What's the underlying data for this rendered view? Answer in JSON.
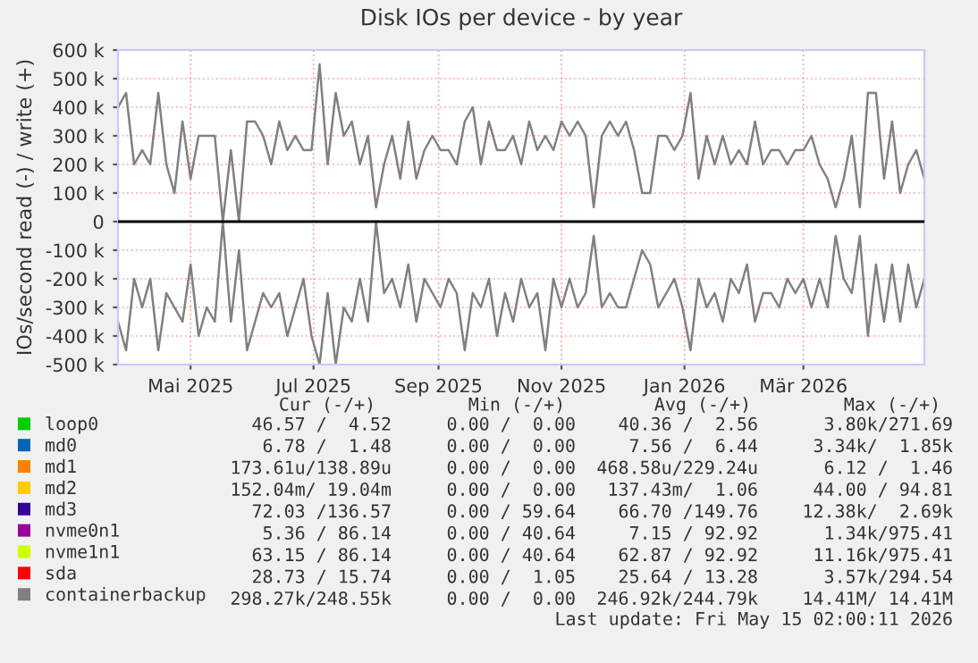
{
  "chart_data": {
    "type": "line",
    "title": "Disk IOs per device - by year",
    "ylabel": "IOs/second read (-) / write (+)",
    "x": [
      "2025-03-26",
      "2025-03-30",
      "2025-04-03",
      "2025-04-07",
      "2025-04-11",
      "2025-04-15",
      "2025-04-19",
      "2025-04-23",
      "2025-04-27",
      "2025-05-01",
      "2025-05-05",
      "2025-05-09",
      "2025-05-13",
      "2025-05-17",
      "2025-05-21",
      "2025-05-25",
      "2025-05-29",
      "2025-06-02",
      "2025-06-06",
      "2025-06-10",
      "2025-06-14",
      "2025-06-18",
      "2025-06-22",
      "2025-06-26",
      "2025-06-30",
      "2025-07-04",
      "2025-07-08",
      "2025-07-12",
      "2025-07-16",
      "2025-07-20",
      "2025-07-24",
      "2025-07-28",
      "2025-08-01",
      "2025-08-05",
      "2025-08-09",
      "2025-08-13",
      "2025-08-17",
      "2025-08-21",
      "2025-08-25",
      "2025-08-29",
      "2025-09-02",
      "2025-09-06",
      "2025-09-10",
      "2025-09-14",
      "2025-09-18",
      "2025-09-22",
      "2025-09-26",
      "2025-09-30",
      "2025-10-04",
      "2025-10-08",
      "2025-10-12",
      "2025-10-16",
      "2025-10-20",
      "2025-10-24",
      "2025-10-28",
      "2025-11-01",
      "2025-11-05",
      "2025-11-09",
      "2025-11-13",
      "2025-11-17",
      "2025-11-21",
      "2025-11-25",
      "2025-11-29",
      "2025-12-03",
      "2025-12-07",
      "2025-12-11",
      "2025-12-15",
      "2025-12-19",
      "2025-12-23",
      "2025-12-27",
      "2025-12-31",
      "2026-01-04",
      "2026-01-08",
      "2026-01-12",
      "2026-01-16",
      "2026-01-20",
      "2026-01-24",
      "2026-01-28",
      "2026-02-01",
      "2026-02-05",
      "2026-02-09",
      "2026-02-13",
      "2026-02-17",
      "2026-02-21",
      "2026-02-25",
      "2026-03-01",
      "2026-03-05",
      "2026-03-09",
      "2026-03-13",
      "2026-03-17",
      "2026-03-21",
      "2026-03-25",
      "2026-03-29",
      "2026-04-02",
      "2026-04-06",
      "2026-04-10",
      "2026-04-14",
      "2026-04-18",
      "2026-04-22",
      "2026-04-26",
      "2026-04-30"
    ],
    "series": [
      {
        "name": "loop0",
        "color": "#00cc00",
        "values": [
          null,
          null,
          null,
          null,
          null,
          null,
          null,
          null,
          null,
          null,
          null,
          null,
          null,
          null,
          null,
          null,
          null,
          null,
          null,
          null,
          null,
          null,
          null,
          null,
          null,
          null,
          null,
          null,
          null,
          null,
          null,
          null,
          null,
          null,
          null,
          null,
          null,
          null,
          null,
          null,
          null,
          null,
          null,
          null,
          null,
          null,
          null,
          null,
          null,
          null,
          null,
          null,
          null,
          null,
          null,
          null,
          null,
          null,
          null,
          null,
          null,
          null,
          null,
          null,
          null,
          null,
          null,
          null,
          null,
          null,
          null,
          null,
          null,
          null,
          null,
          null,
          null,
          null,
          null,
          null,
          null,
          null,
          null,
          null,
          null,
          null,
          null,
          null,
          null,
          null,
          null,
          null,
          null,
          null,
          null,
          null,
          null,
          null,
          null,
          null,
          null
        ]
      },
      {
        "name": "md0",
        "color": "#0066b3",
        "values": [
          null,
          null,
          null,
          null,
          null,
          null,
          null,
          null,
          null,
          null,
          null,
          null,
          null,
          null,
          null,
          null,
          null,
          null,
          null,
          null,
          null,
          null,
          null,
          null,
          null,
          null,
          null,
          null,
          null,
          null,
          null,
          null,
          null,
          null,
          null,
          null,
          null,
          null,
          null,
          null,
          null,
          null,
          null,
          null,
          null,
          null,
          null,
          null,
          null,
          null,
          null,
          null,
          null,
          null,
          null,
          null,
          null,
          null,
          null,
          null,
          null,
          null,
          null,
          null,
          null,
          null,
          null,
          null,
          null,
          null,
          null,
          null,
          null,
          null,
          null,
          null,
          null,
          null,
          null,
          null,
          null,
          null,
          null,
          null,
          null,
          null,
          null,
          null,
          null,
          null,
          null,
          null,
          null,
          null,
          null,
          null,
          null,
          null,
          null,
          null,
          null
        ]
      },
      {
        "name": "md1",
        "color": "#ff8000",
        "values": [
          null,
          null,
          null,
          null,
          null,
          null,
          null,
          null,
          null,
          null,
          null,
          null,
          null,
          null,
          null,
          null,
          null,
          null,
          null,
          null,
          null,
          null,
          null,
          null,
          null,
          null,
          null,
          null,
          null,
          null,
          null,
          null,
          null,
          null,
          null,
          null,
          null,
          null,
          null,
          null,
          null,
          null,
          null,
          null,
          null,
          null,
          null,
          null,
          null,
          null,
          null,
          null,
          null,
          null,
          null,
          null,
          null,
          null,
          null,
          null,
          null,
          null,
          null,
          null,
          null,
          null,
          null,
          null,
          null,
          null,
          null,
          null,
          null,
          null,
          null,
          null,
          null,
          null,
          null,
          null,
          null,
          null,
          null,
          null,
          null,
          null,
          null,
          null,
          null,
          null,
          null,
          null,
          null,
          null,
          null,
          null,
          null,
          null,
          null,
          null,
          null
        ]
      },
      {
        "name": "md2",
        "color": "#ffcc00",
        "values": [
          null,
          null,
          null,
          null,
          null,
          null,
          null,
          null,
          null,
          null,
          null,
          null,
          null,
          null,
          null,
          null,
          null,
          null,
          null,
          null,
          null,
          null,
          null,
          null,
          null,
          null,
          null,
          null,
          null,
          null,
          null,
          null,
          null,
          null,
          null,
          null,
          null,
          null,
          null,
          null,
          null,
          null,
          null,
          null,
          null,
          null,
          null,
          null,
          null,
          null,
          null,
          null,
          null,
          null,
          null,
          null,
          null,
          null,
          null,
          null,
          null,
          null,
          null,
          null,
          null,
          null,
          null,
          null,
          null,
          null,
          null,
          null,
          null,
          null,
          null,
          null,
          null,
          null,
          null,
          null,
          null,
          null,
          null,
          null,
          null,
          null,
          null,
          null,
          null,
          null,
          null,
          null,
          null,
          null,
          null,
          null,
          null,
          null,
          null,
          null,
          null
        ]
      },
      {
        "name": "md3",
        "color": "#330099",
        "values": [
          null,
          null,
          null,
          null,
          null,
          null,
          null,
          null,
          null,
          null,
          null,
          null,
          null,
          null,
          null,
          null,
          null,
          null,
          null,
          null,
          null,
          null,
          null,
          null,
          null,
          null,
          null,
          null,
          null,
          null,
          null,
          null,
          null,
          null,
          null,
          null,
          null,
          null,
          null,
          null,
          null,
          null,
          null,
          null,
          null,
          null,
          null,
          null,
          null,
          null,
          null,
          null,
          null,
          null,
          null,
          null,
          null,
          null,
          null,
          null,
          null,
          null,
          null,
          null,
          null,
          null,
          null,
          null,
          null,
          null,
          null,
          null,
          null,
          null,
          null,
          null,
          null,
          null,
          null,
          null,
          null,
          null,
          null,
          null,
          null,
          null,
          null,
          null,
          null,
          null,
          null,
          null,
          null,
          null,
          null,
          null,
          null,
          null,
          null,
          null,
          null
        ]
      },
      {
        "name": "nvme0n1",
        "color": "#990099",
        "values": [
          null,
          null,
          null,
          null,
          null,
          null,
          null,
          null,
          null,
          null,
          null,
          null,
          null,
          null,
          null,
          null,
          null,
          null,
          null,
          null,
          null,
          null,
          null,
          null,
          null,
          null,
          null,
          null,
          null,
          null,
          null,
          null,
          null,
          null,
          null,
          null,
          null,
          null,
          null,
          null,
          null,
          null,
          null,
          null,
          null,
          null,
          null,
          null,
          null,
          null,
          null,
          null,
          null,
          null,
          null,
          null,
          null,
          null,
          null,
          null,
          null,
          null,
          null,
          null,
          null,
          null,
          null,
          null,
          null,
          null,
          null,
          null,
          null,
          null,
          null,
          null,
          null,
          null,
          null,
          null,
          null,
          null,
          null,
          null,
          null,
          null,
          null,
          null,
          null,
          null,
          null,
          null,
          null,
          null,
          null,
          null,
          null,
          null,
          null,
          null,
          null
        ]
      },
      {
        "name": "nvme1n1",
        "color": "#ccff00",
        "values": [
          null,
          null,
          null,
          null,
          null,
          null,
          null,
          null,
          null,
          null,
          null,
          null,
          null,
          null,
          null,
          null,
          null,
          null,
          null,
          null,
          null,
          null,
          null,
          null,
          null,
          null,
          null,
          null,
          null,
          null,
          null,
          null,
          null,
          null,
          null,
          null,
          null,
          null,
          null,
          null,
          null,
          null,
          null,
          null,
          null,
          null,
          null,
          null,
          null,
          null,
          null,
          null,
          null,
          null,
          null,
          null,
          null,
          null,
          null,
          null,
          null,
          null,
          null,
          null,
          null,
          null,
          null,
          null,
          null,
          null,
          null,
          null,
          null,
          null,
          null,
          null,
          null,
          null,
          null,
          null,
          null,
          null,
          null,
          null,
          null,
          null,
          null,
          null,
          null,
          null,
          null,
          null,
          null,
          null,
          null,
          null,
          null,
          null,
          null,
          null,
          null
        ]
      },
      {
        "name": "sda",
        "color": "#ff0000",
        "values": [
          null,
          null,
          null,
          null,
          null,
          null,
          null,
          null,
          null,
          null,
          null,
          null,
          null,
          null,
          null,
          null,
          null,
          null,
          null,
          null,
          null,
          null,
          null,
          null,
          null,
          null,
          null,
          null,
          null,
          null,
          null,
          null,
          null,
          null,
          null,
          null,
          null,
          null,
          null,
          null,
          null,
          null,
          null,
          null,
          null,
          null,
          null,
          null,
          null,
          null,
          null,
          null,
          null,
          null,
          null,
          null,
          null,
          null,
          null,
          null,
          null,
          null,
          null,
          null,
          null,
          null,
          null,
          null,
          null,
          null,
          null,
          null,
          null,
          null,
          null,
          null,
          null,
          null,
          null,
          null,
          null,
          null,
          null,
          null,
          null,
          null,
          null,
          null,
          null,
          null,
          null,
          null,
          null,
          null,
          null,
          null,
          null,
          null,
          null,
          null,
          null
        ]
      },
      {
        "name": "containerbackup",
        "color": "#808080",
        "values": [
          400000,
          450000,
          200000,
          250000,
          200000,
          450000,
          200000,
          100000,
          350000,
          150000,
          300000,
          300000,
          300000,
          0,
          250000,
          0,
          350000,
          350000,
          300000,
          200000,
          350000,
          250000,
          300000,
          250000,
          250000,
          550000,
          200000,
          450000,
          300000,
          350000,
          200000,
          300000,
          50000,
          200000,
          300000,
          150000,
          350000,
          150000,
          250000,
          300000,
          250000,
          250000,
          200000,
          350000,
          400000,
          200000,
          350000,
          250000,
          250000,
          300000,
          200000,
          350000,
          250000,
          300000,
          250000,
          350000,
          300000,
          350000,
          300000,
          50000,
          300000,
          350000,
          300000,
          350000,
          250000,
          100000,
          100000,
          300000,
          300000,
          250000,
          300000,
          450000,
          150000,
          300000,
          200000,
          300000,
          200000,
          250000,
          200000,
          350000,
          200000,
          250000,
          250000,
          200000,
          250000,
          250000,
          300000,
          200000,
          150000,
          50000,
          150000,
          300000,
          50000,
          450000,
          450000,
          150000,
          350000,
          100000,
          200000,
          250000,
          150000
        ]
      },
      {
        "color": "#808080",
        "values": [
          -350000,
          -450000,
          -200000,
          -300000,
          -200000,
          -450000,
          -250000,
          -300000,
          -350000,
          -150000,
          -400000,
          -300000,
          -350000,
          0,
          -350000,
          -100000,
          -450000,
          -350000,
          -250000,
          -300000,
          -250000,
          -400000,
          -300000,
          -200000,
          -400000,
          -500000,
          -250000,
          -500000,
          -300000,
          -350000,
          -200000,
          -350000,
          0,
          -250000,
          -200000,
          -300000,
          -150000,
          -350000,
          -200000,
          -250000,
          -300000,
          -200000,
          -250000,
          -450000,
          -250000,
          -300000,
          -200000,
          -400000,
          -250000,
          -350000,
          -200000,
          -300000,
          -250000,
          -450000,
          -200000,
          -300000,
          -200000,
          -300000,
          -250000,
          -50000,
          -300000,
          -250000,
          -300000,
          -300000,
          -200000,
          -100000,
          -150000,
          -300000,
          -250000,
          -200000,
          -300000,
          -450000,
          -200000,
          -300000,
          -250000,
          -350000,
          -200000,
          -250000,
          -150000,
          -350000,
          -250000,
          -250000,
          -300000,
          -200000,
          -250000,
          -200000,
          -300000,
          -200000,
          -300000,
          -50000,
          -200000,
          -250000,
          -50000,
          -400000,
          -150000,
          -350000,
          -150000,
          -350000,
          -150000,
          -300000,
          -200000
        ]
      }
    ],
    "xlim": [
      "2025-03-26",
      "2026-04-30"
    ],
    "xticks": [
      {
        "value": "2025-05-01",
        "label": "Mai 2025"
      },
      {
        "value": "2025-07-01",
        "label": "Jul 2025"
      },
      {
        "value": "2025-09-01",
        "label": "Sep 2025"
      },
      {
        "value": "2025-11-01",
        "label": "Nov 2025"
      },
      {
        "value": "2026-01-01",
        "label": "Jan 2026"
      },
      {
        "value": "2026-03-01",
        "label": "Mär 2026"
      }
    ],
    "ylim": [
      -500000,
      600000
    ],
    "yticks": [
      {
        "value": -500000,
        "label": "-500 k"
      },
      {
        "value": -400000,
        "label": "-400 k"
      },
      {
        "value": -300000,
        "label": "-300 k"
      },
      {
        "value": -200000,
        "label": "-200 k"
      },
      {
        "value": -100000,
        "label": "-100 k"
      },
      0,
      {
        "value": 100000,
        "label": "100 k"
      },
      {
        "value": 200000,
        "label": "200 k"
      },
      {
        "value": 300000,
        "label": "300 k"
      },
      {
        "value": 400000,
        "label": "400 k"
      },
      {
        "value": 500000,
        "label": "500 k"
      },
      {
        "value": 600000,
        "label": "600 k"
      }
    ],
    "ref_lines": [
      {
        "axis": "y",
        "value": 0,
        "color": "#000000"
      }
    ],
    "grid": true,
    "legend": "bottom",
    "annotations": [
      "Cur (-/+)",
      "Min (-/+)",
      "Avg (-/+)",
      "Max (-/+)",
      "46.57 /  4.52",
      "0.00 /  0.00",
      "40.36 /  2.56",
      "3.80k/271.69",
      "6.78 /  1.48",
      "0.00 /  0.00",
      "7.56 /  6.44",
      "3.34k/  1.85k",
      "173.61u/138.89u",
      "0.00 /  0.00",
      "468.58u/229.24u",
      "6.12 /  1.46",
      "152.04m/ 19.04m",
      "0.00 /  0.00",
      "137.43m/  1.06",
      "44.00 / 94.81",
      "72.03 /136.57",
      "0.00 / 59.64",
      "66.70 /149.76",
      "12.38k/  2.69k",
      "5.36 / 86.14",
      "0.00 / 40.64",
      "7.15 / 92.92",
      "1.34k/975.41",
      "63.15 / 86.14",
      "0.00 / 40.64",
      "62.87 / 92.92",
      "11.16k/975.41",
      "28.73 / 15.74",
      "0.00 /  1.05",
      "25.64 / 13.28",
      "3.57k/294.54",
      "298.27k/248.55k",
      "0.00 /  0.00",
      "246.92k/244.79k",
      "14.41M/ 14.41M",
      "Last update: Fri May 15 02:00:11 2026"
    ]
  }
}
